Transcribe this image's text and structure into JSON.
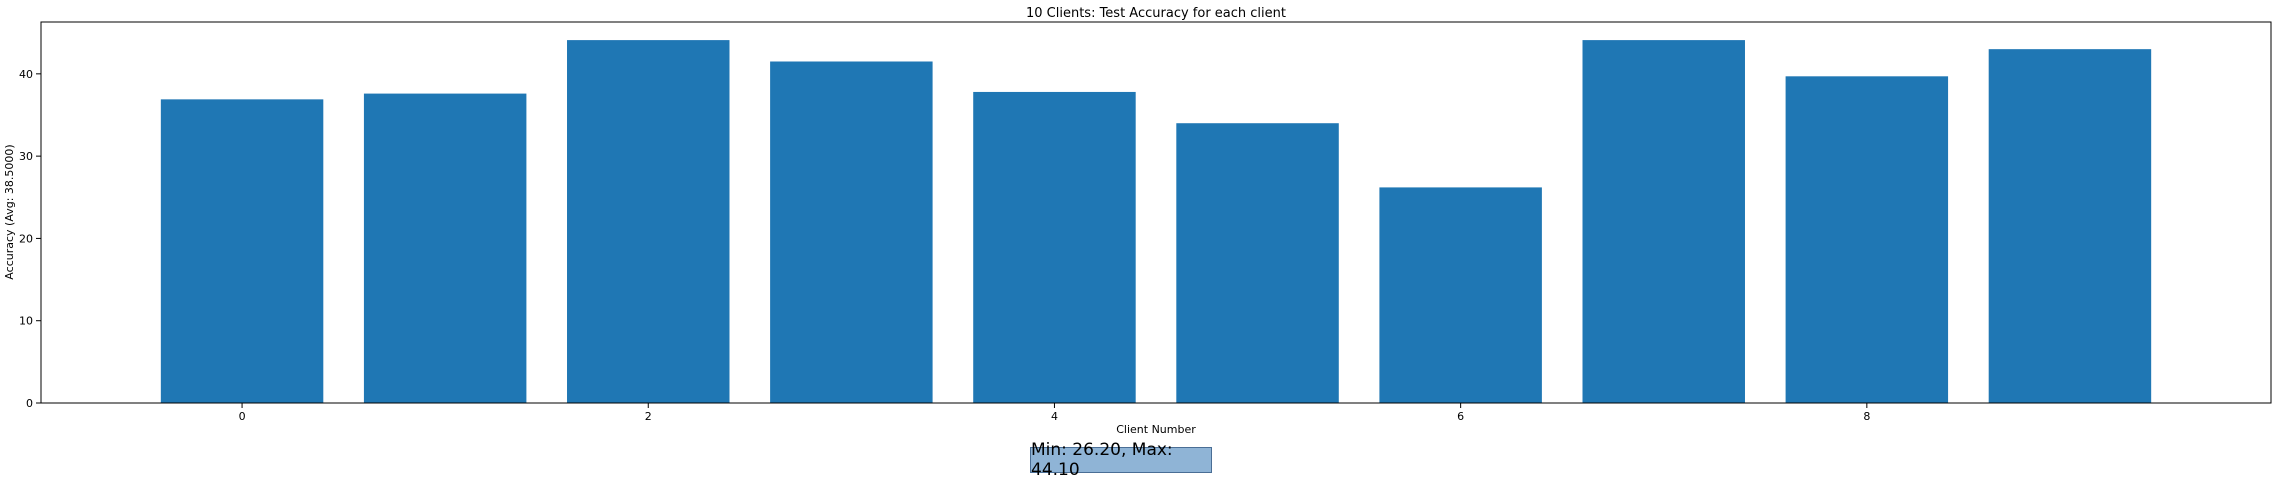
{
  "chart_data": {
    "type": "bar",
    "title": "10 Clients: Test Accuracy for each client",
    "xlabel": "Client Number",
    "ylabel": "Accuracy (Avg: 38.5000)",
    "categories": [
      0,
      1,
      2,
      3,
      4,
      5,
      6,
      7,
      8,
      9
    ],
    "values": [
      36.9,
      37.6,
      44.1,
      41.5,
      37.8,
      34.0,
      26.2,
      44.1,
      39.7,
      43.0
    ],
    "xticks": [
      0,
      2,
      4,
      6,
      8
    ],
    "yticks": [
      0,
      10,
      20,
      30,
      40
    ],
    "ylim": [
      0,
      46.3
    ],
    "xlim": [
      -0.99,
      9.99
    ],
    "bar_color": "#1f77b4",
    "grid": false
  },
  "summary": {
    "text": "Min: 26.20, Max: 44.10"
  }
}
